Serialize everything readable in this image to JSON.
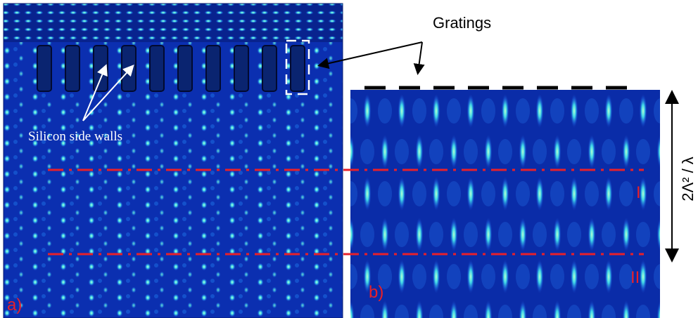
{
  "figure": {
    "callout": "Gratings",
    "sidewall_label": "Silicon side walls",
    "panels": [
      {
        "label": "a)"
      },
      {
        "label": "b)"
      }
    ],
    "planes": [
      "I",
      "II"
    ],
    "period_label": "2Λ² / λ"
  }
}
